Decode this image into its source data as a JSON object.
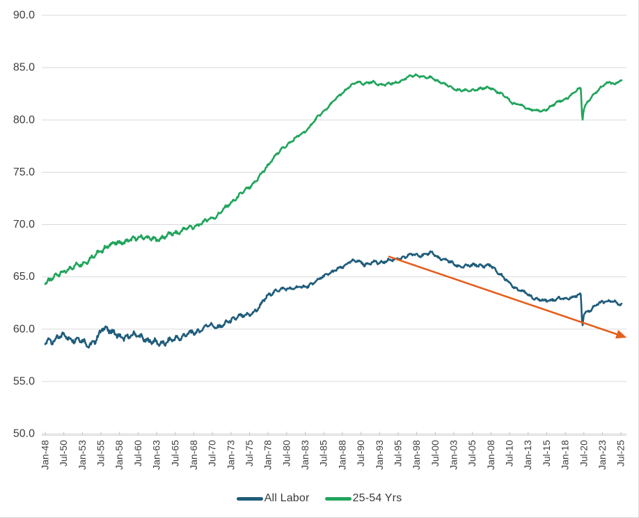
{
  "chart_data": {
    "type": "line",
    "title": "",
    "xlabel": "",
    "ylabel": "",
    "ylim": [
      50.0,
      90.0
    ],
    "y_tick_step": 5.0,
    "y_tick_labels": [
      "50.0",
      "55.0",
      "60.0",
      "65.0",
      "70.0",
      "75.0",
      "80.0",
      "85.0",
      "90.0"
    ],
    "x_start_year": 1948.0,
    "x_end_year": 2025.58,
    "x_tick_step_years": 2.5,
    "x_tick_labels": [
      "Jan-48",
      "Jul-50",
      "Jan-53",
      "Jul-55",
      "Jan-58",
      "Jul-60",
      "Jan-63",
      "Jul-65",
      "Jan-68",
      "Jul-70",
      "Jan-73",
      "Jul-75",
      "Jan-78",
      "Jul-80",
      "Jan-83",
      "Jul-85",
      "Jan-88",
      "Jul-90",
      "Jan-93",
      "Jul-95",
      "Jan-98",
      "Jul-00",
      "Jan-03",
      "Jul-05",
      "Jan-08",
      "Jul-10",
      "Jan-13",
      "Jul-15",
      "Jan-18",
      "Jul-20",
      "Jan-23",
      "Jul-25"
    ],
    "grid": "horizontal",
    "legend_position": "bottom-center",
    "series": [
      {
        "name": "All Labor",
        "color": "#1F5C7B",
        "frequency": "monthly",
        "anchors": [
          [
            1948.0,
            58.7
          ],
          [
            1948.6,
            59.1
          ],
          [
            1949.0,
            58.9
          ],
          [
            1950.0,
            59.2
          ],
          [
            1950.8,
            59.5
          ],
          [
            1951.0,
            59.2
          ],
          [
            1952.0,
            59.0
          ],
          [
            1953.0,
            58.9
          ],
          [
            1954.0,
            58.5
          ],
          [
            1955.0,
            59.0
          ],
          [
            1955.7,
            60.1
          ],
          [
            1956.2,
            60.2
          ],
          [
            1957.0,
            59.7
          ],
          [
            1958.0,
            59.2
          ],
          [
            1959.0,
            59.3
          ],
          [
            1960.0,
            59.4
          ],
          [
            1961.0,
            59.3
          ],
          [
            1962.0,
            58.8
          ],
          [
            1963.0,
            58.7
          ],
          [
            1964.0,
            58.7
          ],
          [
            1965.0,
            58.9
          ],
          [
            1966.0,
            59.2
          ],
          [
            1967.0,
            59.5
          ],
          [
            1968.0,
            59.6
          ],
          [
            1969.0,
            60.0
          ],
          [
            1970.0,
            60.4
          ],
          [
            1971.0,
            60.2
          ],
          [
            1972.0,
            60.4
          ],
          [
            1973.0,
            60.8
          ],
          [
            1974.0,
            61.3
          ],
          [
            1975.0,
            61.2
          ],
          [
            1976.0,
            61.6
          ],
          [
            1977.0,
            62.3
          ],
          [
            1978.0,
            63.2
          ],
          [
            1979.0,
            63.7
          ],
          [
            1980.0,
            63.8
          ],
          [
            1981.0,
            63.9
          ],
          [
            1982.0,
            64.0
          ],
          [
            1983.0,
            64.0
          ],
          [
            1984.0,
            64.4
          ],
          [
            1985.0,
            64.8
          ],
          [
            1986.0,
            65.3
          ],
          [
            1987.0,
            65.6
          ],
          [
            1988.0,
            65.9
          ],
          [
            1989.0,
            66.5
          ],
          [
            1990.0,
            66.5
          ],
          [
            1991.0,
            66.2
          ],
          [
            1992.0,
            66.4
          ],
          [
            1993.0,
            66.3
          ],
          [
            1994.0,
            66.6
          ],
          [
            1995.0,
            66.6
          ],
          [
            1996.0,
            66.8
          ],
          [
            1997.0,
            67.1
          ],
          [
            1998.0,
            67.1
          ],
          [
            1999.0,
            67.1
          ],
          [
            2000.0,
            67.3
          ],
          [
            2001.0,
            66.8
          ],
          [
            2002.0,
            66.6
          ],
          [
            2003.0,
            66.2
          ],
          [
            2004.0,
            66.0
          ],
          [
            2005.0,
            66.0
          ],
          [
            2006.0,
            66.2
          ],
          [
            2007.0,
            66.0
          ],
          [
            2008.0,
            66.1
          ],
          [
            2009.0,
            65.4
          ],
          [
            2010.0,
            64.7
          ],
          [
            2011.0,
            64.1
          ],
          [
            2012.0,
            63.7
          ],
          [
            2013.0,
            63.3
          ],
          [
            2014.0,
            62.9
          ],
          [
            2015.0,
            62.7
          ],
          [
            2016.0,
            62.8
          ],
          [
            2017.0,
            62.9
          ],
          [
            2018.0,
            62.9
          ],
          [
            2019.0,
            63.1
          ],
          [
            2020.1,
            63.3
          ],
          [
            2020.29,
            60.2
          ],
          [
            2020.5,
            61.5
          ],
          [
            2021.0,
            61.7
          ],
          [
            2022.0,
            62.2
          ],
          [
            2023.0,
            62.6
          ],
          [
            2023.7,
            62.7
          ],
          [
            2024.3,
            62.7
          ],
          [
            2025.0,
            62.4
          ],
          [
            2025.5,
            62.3
          ]
        ]
      },
      {
        "name": "25-54 Yrs",
        "color": "#21A45C",
        "frequency": "monthly",
        "anchors": [
          [
            1948.0,
            64.5
          ],
          [
            1949.0,
            64.9
          ],
          [
            1950.0,
            65.3
          ],
          [
            1951.0,
            65.7
          ],
          [
            1952.0,
            66.0
          ],
          [
            1953.0,
            66.3
          ],
          [
            1954.0,
            66.7
          ],
          [
            1955.0,
            67.2
          ],
          [
            1956.0,
            67.8
          ],
          [
            1957.0,
            68.1
          ],
          [
            1958.0,
            68.3
          ],
          [
            1959.0,
            68.4
          ],
          [
            1960.0,
            68.6
          ],
          [
            1961.0,
            68.9
          ],
          [
            1962.0,
            68.6
          ],
          [
            1963.0,
            68.6
          ],
          [
            1964.0,
            68.8
          ],
          [
            1965.0,
            69.1
          ],
          [
            1966.0,
            69.3
          ],
          [
            1967.0,
            69.6
          ],
          [
            1968.0,
            69.8
          ],
          [
            1969.0,
            70.1
          ],
          [
            1970.0,
            70.5
          ],
          [
            1971.0,
            70.8
          ],
          [
            1972.0,
            71.4
          ],
          [
            1973.0,
            72.1
          ],
          [
            1974.0,
            72.7
          ],
          [
            1975.0,
            73.3
          ],
          [
            1976.0,
            73.9
          ],
          [
            1977.0,
            74.7
          ],
          [
            1978.0,
            75.7
          ],
          [
            1979.0,
            76.6
          ],
          [
            1980.0,
            77.3
          ],
          [
            1981.0,
            77.9
          ],
          [
            1982.0,
            78.4
          ],
          [
            1983.0,
            78.9
          ],
          [
            1984.0,
            79.7
          ],
          [
            1985.0,
            80.5
          ],
          [
            1986.0,
            81.2
          ],
          [
            1987.0,
            81.9
          ],
          [
            1988.0,
            82.6
          ],
          [
            1989.0,
            83.2
          ],
          [
            1990.0,
            83.6
          ],
          [
            1991.0,
            83.5
          ],
          [
            1992.0,
            83.6
          ],
          [
            1993.0,
            83.4
          ],
          [
            1994.0,
            83.4
          ],
          [
            1995.0,
            83.5
          ],
          [
            1996.0,
            83.8
          ],
          [
            1997.0,
            84.1
          ],
          [
            1998.0,
            84.3
          ],
          [
            1999.0,
            84.1
          ],
          [
            2000.0,
            84.0
          ],
          [
            2001.0,
            83.7
          ],
          [
            2002.0,
            83.3
          ],
          [
            2003.0,
            83.0
          ],
          [
            2004.0,
            82.8
          ],
          [
            2005.0,
            82.8
          ],
          [
            2006.0,
            82.9
          ],
          [
            2007.0,
            83.0
          ],
          [
            2008.0,
            83.1
          ],
          [
            2009.0,
            82.6
          ],
          [
            2010.0,
            82.2
          ],
          [
            2011.0,
            81.6
          ],
          [
            2012.0,
            81.4
          ],
          [
            2013.0,
            81.1
          ],
          [
            2014.0,
            80.9
          ],
          [
            2015.0,
            80.8
          ],
          [
            2016.0,
            81.3
          ],
          [
            2017.0,
            81.7
          ],
          [
            2018.0,
            82.0
          ],
          [
            2019.0,
            82.5
          ],
          [
            2020.1,
            83.1
          ],
          [
            2020.29,
            79.9
          ],
          [
            2020.5,
            81.1
          ],
          [
            2021.0,
            81.8
          ],
          [
            2022.0,
            82.5
          ],
          [
            2023.0,
            83.3
          ],
          [
            2023.5,
            83.5
          ],
          [
            2024.0,
            83.6
          ],
          [
            2024.6,
            83.3
          ],
          [
            2025.0,
            83.6
          ],
          [
            2025.5,
            83.8
          ]
        ]
      }
    ],
    "annotation_arrow": {
      "name": "downtrend-arrow",
      "color": "#E45F1E",
      "from_year": 1994.2,
      "from_value": 66.95,
      "to_year": 2025.2,
      "to_value": 59.45
    }
  },
  "colors": {
    "background": "#FFFFFF",
    "gridline": "#D9D9D9",
    "axis_line": "#C6C6C6",
    "tick_text": "#3E3E3E",
    "border": "#DEDEDE"
  }
}
